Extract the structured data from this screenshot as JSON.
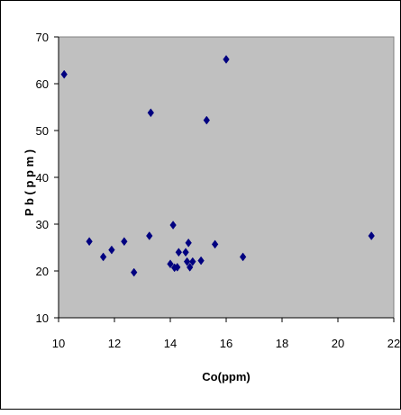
{
  "chart_data": {
    "type": "scatter",
    "title": "",
    "xlabel": "Co(ppm)",
    "ylabel": "P b ( p p m )",
    "xlim": [
      10,
      22
    ],
    "ylim": [
      10,
      70
    ],
    "x_ticks": [
      "10",
      "12",
      "14",
      "16",
      "18",
      "20",
      "22"
    ],
    "y_ticks": [
      "10",
      "20",
      "30",
      "40",
      "50",
      "60",
      "70"
    ],
    "grid": false,
    "legend": "none",
    "marker": "diamond",
    "colors": {
      "plot_background": "#c0c0c0",
      "marker": "#000080",
      "axis": "#000000"
    },
    "series": [
      {
        "x": [
          10.2,
          11.1,
          11.6,
          11.9,
          12.35,
          12.7,
          13.25,
          13.3,
          14.0,
          14.1,
          14.15,
          14.25,
          14.3,
          14.55,
          14.6,
          14.65,
          14.7,
          14.8,
          15.1,
          15.3,
          15.6,
          16.0,
          16.6,
          21.2
        ],
        "y": [
          62,
          26.3,
          23,
          24.5,
          26.3,
          19.7,
          27.5,
          53.8,
          21.5,
          29.8,
          20.7,
          20.8,
          24,
          24,
          22,
          26,
          20.8,
          22,
          22.2,
          52.2,
          25.7,
          65.2,
          23,
          27.5
        ]
      }
    ]
  }
}
